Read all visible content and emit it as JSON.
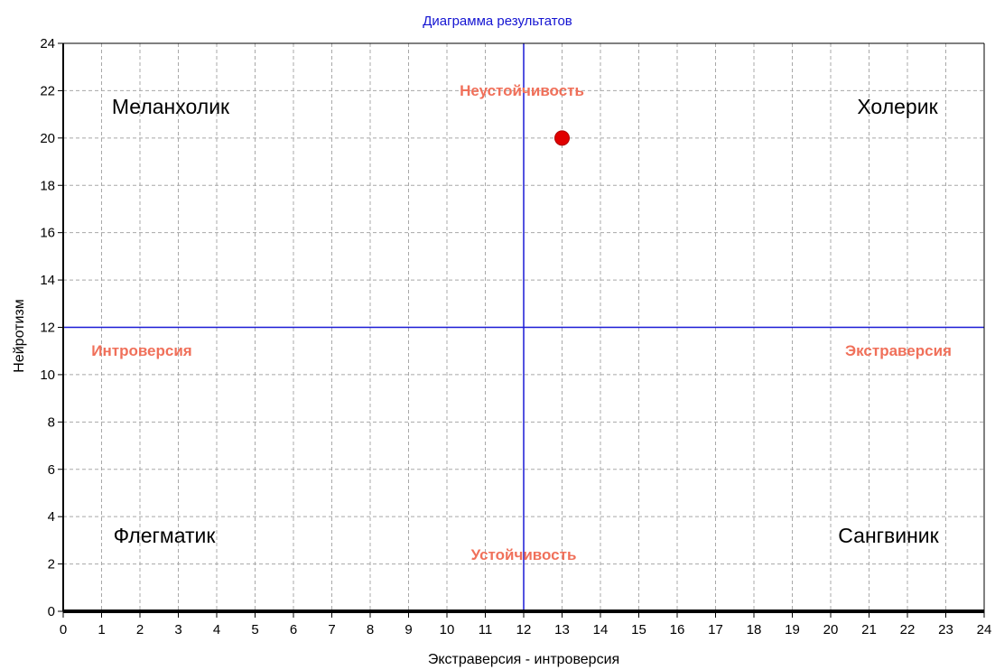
{
  "chart_data": {
    "type": "scatter",
    "title": "Диаграмма результатов",
    "xlabel": "Экстраверсия - интроверсия",
    "ylabel": "Нейротизм",
    "xlim": [
      0,
      24
    ],
    "ylim": [
      0,
      24
    ],
    "x_ticks": [
      0,
      1,
      2,
      3,
      4,
      5,
      6,
      7,
      8,
      9,
      10,
      11,
      12,
      13,
      14,
      15,
      16,
      17,
      18,
      19,
      20,
      21,
      22,
      23,
      24
    ],
    "y_ticks": [
      0,
      2,
      4,
      6,
      8,
      10,
      12,
      14,
      16,
      18,
      20,
      22,
      24
    ],
    "grid": true,
    "points": [
      {
        "x": 13,
        "y": 20
      }
    ],
    "reference_lines": {
      "x": 12,
      "y": 12
    },
    "quadrant_labels": {
      "top_left": "Меланхолик",
      "top_right": "Холерик",
      "bottom_left": "Флегматик",
      "bottom_right": "Сангвиник"
    },
    "pole_labels": {
      "top": "Неустойчивость",
      "bottom": "Устойчивость",
      "left": "Интроверсия",
      "right": "Экстраверсия"
    },
    "colors": {
      "title": "#1414d2",
      "reference_line": "#1a1ad6",
      "point": "#e00000",
      "pole_label": "#f0705a",
      "grid": "#a8a8a8"
    }
  }
}
